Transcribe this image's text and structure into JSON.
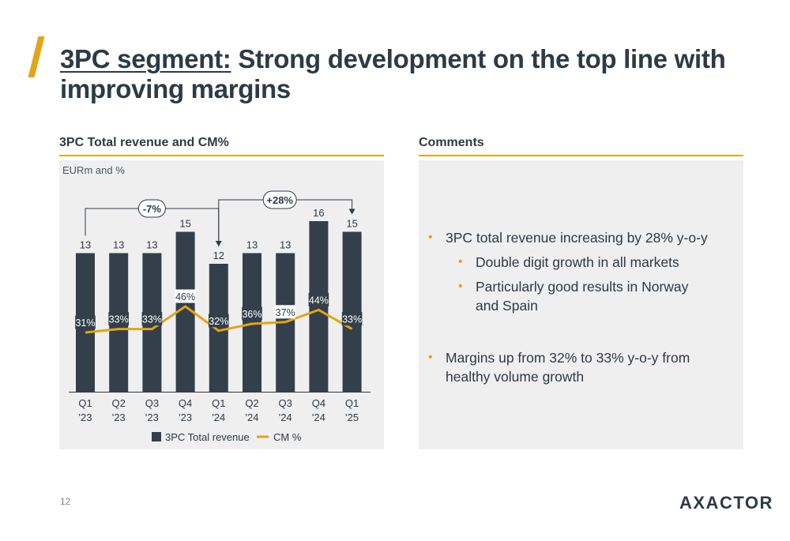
{
  "slide": {
    "title_underlined": "3PC segment:",
    "title_rest": " Strong development on the top line with improving margins",
    "page_number": "12",
    "logo": "AXACTOR"
  },
  "left_panel": {
    "heading": "3PC Total revenue and CM%",
    "units": "EURm and %"
  },
  "right_panel": {
    "heading": "Comments",
    "bullets": [
      {
        "text": "3PC total revenue increasing by 28% y-o-y",
        "level": 1
      },
      {
        "text": "Double digit growth in all markets",
        "level": 2
      },
      {
        "text": "Particularly good results in Norway and Spain",
        "level": 2
      },
      {
        "text": "Margins up from 32% to 33% y-o-y from healthy volume growth",
        "level": 1
      }
    ]
  },
  "colors": {
    "bar": "#333f4a",
    "line": "#e3a416",
    "accent": "#e3a416",
    "text": "#2e3a45"
  },
  "chart_data": {
    "type": "bar",
    "categories": [
      [
        "Q1",
        "'23"
      ],
      [
        "Q2",
        "'23"
      ],
      [
        "Q3",
        "'23"
      ],
      [
        "Q4",
        "'23"
      ],
      [
        "Q1",
        "'24"
      ],
      [
        "Q2",
        "'24"
      ],
      [
        "Q3",
        "'24"
      ],
      [
        "Q4",
        "'24"
      ],
      [
        "Q1",
        "'25"
      ]
    ],
    "series": [
      {
        "name": "3PC Total revenue",
        "type": "bar",
        "values": [
          13,
          13,
          13,
          15,
          12,
          13,
          13,
          16,
          15
        ]
      },
      {
        "name": "CM %",
        "type": "line",
        "values": [
          31,
          33,
          33,
          46,
          32,
          36,
          37,
          44,
          33
        ],
        "labels": [
          "31%",
          "33%",
          "33%",
          "46%",
          "32%",
          "36%",
          "37%",
          "44%",
          "33%"
        ]
      }
    ],
    "bar_labels": [
      "13",
      "13",
      "13",
      "15",
      "12",
      "13",
      "13",
      "16",
      "15"
    ],
    "annotations": [
      {
        "label": "-7%",
        "from": 0,
        "to": 4
      },
      {
        "label": "+28%",
        "from": 4,
        "to": 8
      }
    ],
    "legend_position": "bottom"
  }
}
